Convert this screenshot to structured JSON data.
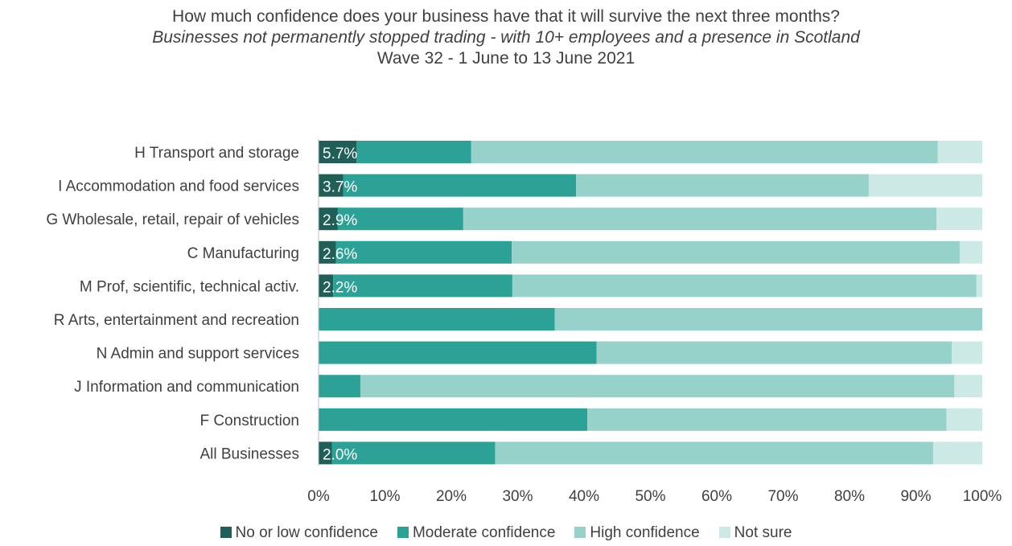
{
  "chart_data": {
    "type": "bar",
    "orientation": "horizontal",
    "stacked": true,
    "title": "How much confidence does your business have that it will survive the next three months?",
    "subtitle": "Businesses not permanently stopped trading - with 10+ employees and a presence in Scotland",
    "subtitle2": "Wave 32 - 1 June to 13 June 2021",
    "categories": [
      "H Transport and storage",
      "I Accommodation and food services",
      "G Wholesale, retail, repair of vehicles",
      "C Manufacturing",
      "M Prof, scientific, technical activ.",
      "R Arts, entertainment and recreation",
      "N Admin and support services",
      "J Information and communication",
      "F Construction",
      "All Businesses"
    ],
    "series": [
      {
        "name": "No or low confidence",
        "color": "#1f5f58",
        "values": [
          5.7,
          3.7,
          2.9,
          2.6,
          2.2,
          0,
          0,
          0,
          0,
          2.0
        ],
        "labels": [
          "5.7%",
          "3.7%",
          "2.9%",
          "2.6%",
          "2.2%",
          "",
          "",
          "",
          "",
          "2.0%"
        ]
      },
      {
        "name": "Moderate confidence",
        "color": "#2ca297",
        "values": [
          17.3,
          35.1,
          18.9,
          26.5,
          27.0,
          35.6,
          41.9,
          6.3,
          40.5,
          24.6
        ]
      },
      {
        "name": "High confidence",
        "color": "#96d2c9",
        "values": [
          70.3,
          44.1,
          71.3,
          67.5,
          69.9,
          64.4,
          53.5,
          89.5,
          54.1,
          66.0
        ]
      },
      {
        "name": "Not sure",
        "color": "#cde9e6",
        "values": [
          6.7,
          17.1,
          6.9,
          3.4,
          0.9,
          0,
          4.6,
          4.2,
          5.4,
          7.4
        ]
      }
    ],
    "xlim": [
      0,
      100
    ],
    "xticks": [
      "0%",
      "10%",
      "20%",
      "30%",
      "40%",
      "50%",
      "60%",
      "70%",
      "80%",
      "90%",
      "100%"
    ],
    "grid": false,
    "legend_position": "bottom"
  }
}
